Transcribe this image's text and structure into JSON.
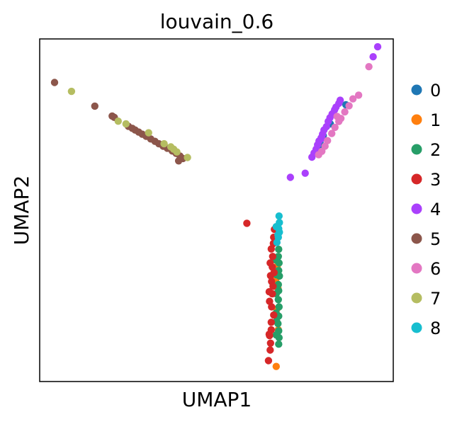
{
  "chart_data": {
    "type": "scatter",
    "title": "louvain_0.6",
    "xlabel": "UMAP1",
    "ylabel": "UMAP2",
    "xlim": [
      0,
      100
    ],
    "ylim": [
      0,
      100
    ],
    "grid": false,
    "ticks": "hidden",
    "legend_placement": "right",
    "colors": {
      "0": "#1f77b4",
      "1": "#ff7f0e",
      "2": "#279e68",
      "3": "#d62728",
      "4": "#aa40fc",
      "5": "#8c564b",
      "6": "#e377c2",
      "7": "#b5bd61",
      "8": "#17becf"
    },
    "series": [
      {
        "name": "0",
        "points": [
          [
            86.6,
            80.8
          ],
          [
            82.2,
            75.2
          ],
          [
            78.8,
            68.6
          ],
          [
            79.3,
            69.7
          ],
          [
            80.2,
            71.8
          ]
        ]
      },
      {
        "name": "1",
        "points": [
          [
            66.9,
            4.4
          ],
          [
            67.4,
            27.2
          ],
          [
            66.8,
            29.8
          ],
          [
            67.5,
            15.1
          ],
          [
            67.2,
            33.7
          ],
          [
            67.1,
            21.2
          ]
        ]
      },
      {
        "name": "2",
        "points": [
          [
            67.6,
            10.9
          ],
          [
            67.7,
            12.8
          ],
          [
            67.6,
            14.8
          ],
          [
            67.4,
            16.9
          ],
          [
            67.6,
            19.1
          ],
          [
            67.7,
            21.8
          ],
          [
            67.5,
            23.9
          ],
          [
            67.6,
            26.5
          ],
          [
            67.5,
            28.3
          ],
          [
            67.8,
            30.8
          ],
          [
            67.6,
            32.4
          ],
          [
            67.7,
            34.6
          ],
          [
            67.5,
            36.5
          ],
          [
            67.6,
            38.6
          ],
          [
            66.8,
            35.5
          ],
          [
            66.9,
            31.2
          ],
          [
            66.9,
            25.6
          ],
          [
            66.9,
            20.0
          ],
          [
            67.0,
            17.6
          ],
          [
            66.9,
            13.6
          ]
        ]
      },
      {
        "name": "3",
        "points": [
          [
            58.6,
            46.2
          ],
          [
            64.7,
            6.1
          ],
          [
            65.2,
            9.2
          ],
          [
            65.3,
            11.2
          ],
          [
            65.0,
            13.4
          ],
          [
            65.5,
            15.1
          ],
          [
            64.9,
            13.8
          ],
          [
            65.5,
            17.3
          ],
          [
            65.6,
            21.8
          ],
          [
            65.0,
            23.4
          ],
          [
            65.8,
            25.6
          ],
          [
            64.9,
            26.2
          ],
          [
            65.6,
            29.2
          ],
          [
            65.3,
            30.9
          ],
          [
            65.8,
            33.4
          ],
          [
            65.2,
            34.6
          ],
          [
            65.9,
            36.5
          ],
          [
            65.5,
            38.7
          ],
          [
            66.1,
            40.3
          ],
          [
            66.2,
            42.1
          ],
          [
            66.4,
            44.4
          ],
          [
            66.0,
            27.8
          ],
          [
            66.2,
            19.4
          ],
          [
            66.3,
            31.8
          ]
        ]
      },
      {
        "name": "4",
        "points": [
          [
            95.6,
            97.7
          ],
          [
            94.3,
            94.8
          ],
          [
            70.9,
            59.6
          ],
          [
            75.1,
            60.8
          ],
          [
            77.0,
            65.5
          ],
          [
            77.6,
            66.7
          ],
          [
            78.2,
            67.8
          ],
          [
            78.6,
            69.1
          ],
          [
            79.0,
            70.2
          ],
          [
            79.6,
            71.1
          ],
          [
            80.0,
            72.2
          ],
          [
            80.4,
            73.4
          ],
          [
            81.1,
            74.4
          ],
          [
            81.6,
            75.9
          ],
          [
            82.1,
            77.0
          ],
          [
            82.7,
            78.1
          ],
          [
            83.4,
            79.3
          ],
          [
            83.8,
            80.1
          ],
          [
            84.6,
            81.2
          ],
          [
            85.0,
            82.1
          ],
          [
            79.8,
            71.0
          ],
          [
            78.0,
            67.1
          ]
        ]
      },
      {
        "name": "5",
        "points": [
          [
            4.2,
            87.3
          ],
          [
            15.6,
            80.4
          ],
          [
            20.5,
            77.5
          ],
          [
            21.1,
            77.1
          ],
          [
            25.1,
            74.5
          ],
          [
            26.2,
            73.9
          ],
          [
            27.0,
            73.4
          ],
          [
            28.0,
            72.8
          ],
          [
            29.0,
            72.2
          ],
          [
            30.1,
            71.6
          ],
          [
            31.4,
            70.8
          ],
          [
            32.6,
            70.1
          ],
          [
            33.7,
            69.4
          ],
          [
            34.9,
            68.7
          ],
          [
            36.1,
            68.1
          ],
          [
            37.5,
            67.3
          ],
          [
            38.6,
            66.6
          ],
          [
            39.7,
            65.8
          ],
          [
            40.5,
            65.1
          ],
          [
            39.3,
            64.4
          ]
        ]
      },
      {
        "name": "6",
        "points": [
          [
            93.1,
            91.9
          ],
          [
            90.2,
            83.6
          ],
          [
            88.6,
            82.5
          ],
          [
            87.5,
            80.5
          ],
          [
            86.3,
            78.7
          ],
          [
            85.2,
            76.8
          ],
          [
            84.6,
            75.9
          ],
          [
            83.5,
            74.2
          ],
          [
            82.6,
            72.4
          ],
          [
            81.4,
            70.3
          ],
          [
            80.7,
            68.7
          ],
          [
            79.8,
            67.2
          ],
          [
            78.9,
            66.2
          ],
          [
            84.1,
            77.4
          ]
        ]
      },
      {
        "name": "7",
        "points": [
          [
            9.0,
            84.7
          ],
          [
            22.2,
            76.0
          ],
          [
            24.4,
            75.2
          ],
          [
            30.8,
            72.6
          ],
          [
            35.2,
            69.4
          ],
          [
            37.1,
            68.5
          ],
          [
            37.9,
            67.8
          ],
          [
            38.8,
            67.0
          ],
          [
            41.8,
            65.4
          ]
        ]
      },
      {
        "name": "8",
        "points": [
          [
            67.4,
            42.8
          ],
          [
            67.5,
            42.1
          ],
          [
            67.8,
            43.6
          ],
          [
            67.6,
            44.6
          ],
          [
            67.8,
            46.4
          ],
          [
            67.7,
            48.3
          ],
          [
            66.9,
            45.2
          ],
          [
            67.1,
            40.6
          ]
        ]
      }
    ]
  }
}
